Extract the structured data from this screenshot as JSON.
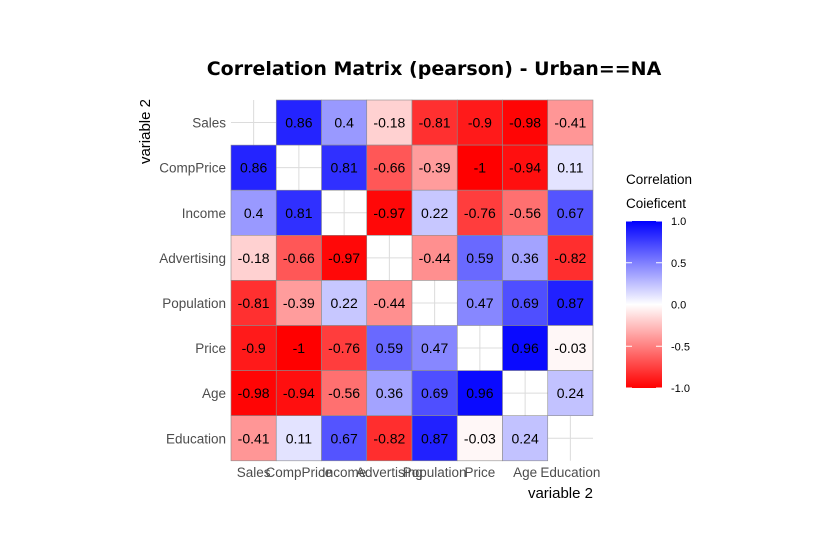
{
  "chart_data": {
    "type": "heatmap",
    "title": "Correlation Matrix (pearson) - Urban==NA",
    "xlabel": "variable 2",
    "ylabel": "variable 2",
    "variables": [
      "Sales",
      "CompPrice",
      "Income",
      "Advertising",
      "Population",
      "Price",
      "Age",
      "Education"
    ],
    "matrix": [
      [
        null,
        0.86,
        0.4,
        -0.18,
        -0.81,
        -0.9,
        -0.98,
        -0.41
      ],
      [
        0.86,
        null,
        0.81,
        -0.66,
        -0.39,
        -1,
        -0.94,
        0.11
      ],
      [
        0.4,
        0.81,
        null,
        -0.97,
        0.22,
        -0.76,
        -0.56,
        0.67
      ],
      [
        -0.18,
        -0.66,
        -0.97,
        null,
        -0.44,
        0.59,
        0.36,
        -0.82
      ],
      [
        -0.81,
        -0.39,
        0.22,
        -0.44,
        null,
        0.47,
        0.69,
        0.87
      ],
      [
        -0.9,
        -1,
        -0.76,
        0.59,
        0.47,
        null,
        0.96,
        -0.03
      ],
      [
        -0.98,
        -0.94,
        -0.56,
        0.36,
        0.69,
        0.96,
        null,
        0.24
      ],
      [
        -0.41,
        0.11,
        0.67,
        -0.82,
        0.87,
        -0.03,
        0.24,
        null
      ]
    ],
    "color_scale": {
      "low": "#ff0000",
      "mid": "#ffffff",
      "high": "#0000ff",
      "limits": [
        -1,
        1
      ]
    },
    "legend": {
      "title_line1": "Correlation",
      "title_line2": "Coieficent",
      "ticks": [
        "1.0",
        "0.5",
        "0.0",
        "-0.5",
        "-1.0"
      ],
      "position": "right"
    },
    "grid": true
  }
}
